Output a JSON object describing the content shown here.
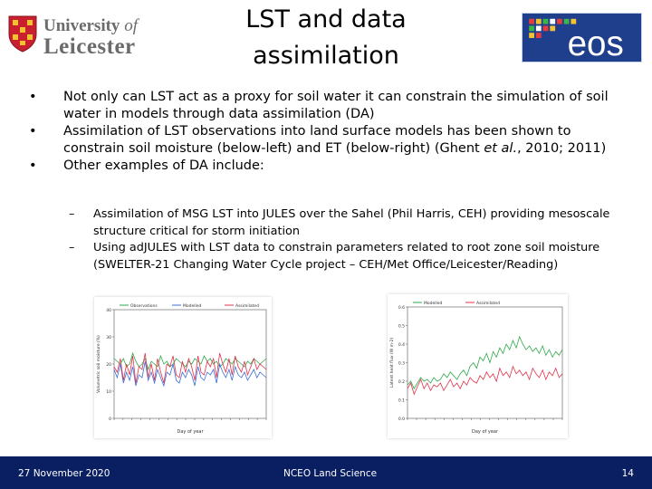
{
  "header": {
    "uol_line1_a": "University",
    "uol_line1_b": "of",
    "uol_line2": "Leicester",
    "title_line1": "LST and data",
    "title_line2": "assimilation",
    "eos_logo_text": "eos"
  },
  "bullets": [
    "Not only can LST act as a proxy for soil water it can constrain the simulation of soil water in models through data assimilation (DA)",
    {
      "before": "Assimilation of LST observations into land surface models has been shown to constrain soil moisture (below-left) and ET (below-right) (Ghent ",
      "em": "et al.",
      "after": ", 2010; 2011)"
    },
    "Other examples of DA include:"
  ],
  "bullet_symbol": "•",
  "dash_symbol": "–",
  "subitems": [
    "Assimilation of MSG LST into JULES over the Sahel (Phil Harris, CEH) providing mesoscale structure critical for storm initiation",
    "Using adJULES with LST data to constrain parameters related to root zone soil moisture (SWELTER-21 Changing Water Cycle project – CEH/Met Office/Leicester/Reading)"
  ],
  "chart_data": [
    {
      "type": "line",
      "xlabel": "Day of year",
      "ylabel": "Volumetric soil moisture (%)",
      "legend": [
        "Observations",
        "Modelled",
        "Assimilated"
      ],
      "colors": [
        "#2ea84a",
        "#3b6fd9",
        "#e0344a"
      ],
      "ylim": [
        0,
        40
      ],
      "yticks": [
        "0",
        "10",
        "20",
        "30",
        "40"
      ],
      "series": [
        {
          "name": "Observations",
          "values": [
            22,
            21,
            20,
            22,
            19,
            20,
            24,
            21,
            19,
            20,
            22,
            18,
            21,
            20,
            19,
            23,
            20,
            21,
            19,
            20,
            22,
            21,
            20,
            19,
            21,
            20,
            22,
            21,
            20,
            23,
            21,
            22,
            20,
            21,
            19,
            20,
            22,
            21,
            20,
            22,
            21,
            20,
            19,
            21,
            20,
            22,
            21,
            20,
            21,
            22
          ]
        },
        {
          "name": "Modelled",
          "values": [
            18,
            15,
            20,
            13,
            17,
            14,
            19,
            12,
            16,
            15,
            21,
            14,
            17,
            13,
            18,
            15,
            12,
            17,
            16,
            20,
            14,
            13,
            17,
            15,
            18,
            16,
            12,
            19,
            15,
            14,
            17,
            16,
            18,
            13,
            20,
            17,
            15,
            18,
            14,
            19,
            16,
            15,
            17,
            14,
            16,
            18,
            15,
            17,
            16,
            15
          ]
        },
        {
          "name": "Assimilated",
          "values": [
            19,
            17,
            22,
            14,
            20,
            16,
            23,
            13,
            19,
            18,
            24,
            15,
            20,
            14,
            22,
            17,
            13,
            20,
            19,
            23,
            16,
            15,
            21,
            17,
            22,
            19,
            14,
            23,
            17,
            16,
            21,
            19,
            22,
            15,
            24,
            20,
            17,
            22,
            16,
            23,
            19,
            17,
            21,
            16,
            19,
            22,
            18,
            20,
            19,
            18
          ]
        }
      ]
    },
    {
      "type": "line",
      "xlabel": "Day of year",
      "ylabel": "Latent heat flux (W m-2)",
      "legend": [
        "Modelled",
        "Assimilated"
      ],
      "colors": [
        "#2ea84a",
        "#e0344a"
      ],
      "ylim": [
        0,
        0.6
      ],
      "yticks": [
        "0.0",
        "0.1",
        "0.2",
        "0.3",
        "0.4",
        "0.5",
        "0.6"
      ],
      "series": [
        {
          "name": "Modelled",
          "values": [
            0.18,
            0.2,
            0.16,
            0.19,
            0.22,
            0.2,
            0.21,
            0.19,
            0.22,
            0.2,
            0.21,
            0.24,
            0.22,
            0.25,
            0.23,
            0.21,
            0.24,
            0.26,
            0.23,
            0.28,
            0.3,
            0.27,
            0.33,
            0.31,
            0.35,
            0.3,
            0.36,
            0.33,
            0.38,
            0.35,
            0.4,
            0.37,
            0.42,
            0.38,
            0.44,
            0.4,
            0.37,
            0.39,
            0.36,
            0.38,
            0.35,
            0.39,
            0.34,
            0.37,
            0.33,
            0.36,
            0.34,
            0.37
          ]
        },
        {
          "name": "Assimilated",
          "values": [
            0.16,
            0.19,
            0.13,
            0.17,
            0.21,
            0.16,
            0.19,
            0.15,
            0.18,
            0.17,
            0.19,
            0.15,
            0.18,
            0.21,
            0.17,
            0.19,
            0.16,
            0.2,
            0.18,
            0.22,
            0.2,
            0.19,
            0.23,
            0.21,
            0.25,
            0.22,
            0.24,
            0.2,
            0.27,
            0.23,
            0.25,
            0.22,
            0.28,
            0.24,
            0.26,
            0.23,
            0.25,
            0.21,
            0.27,
            0.24,
            0.22,
            0.26,
            0.21,
            0.25,
            0.23,
            0.27,
            0.22,
            0.24
          ]
        }
      ]
    }
  ],
  "footer": {
    "date": "27 November 2020",
    "center": "NCEO Land Science",
    "page": "14"
  }
}
